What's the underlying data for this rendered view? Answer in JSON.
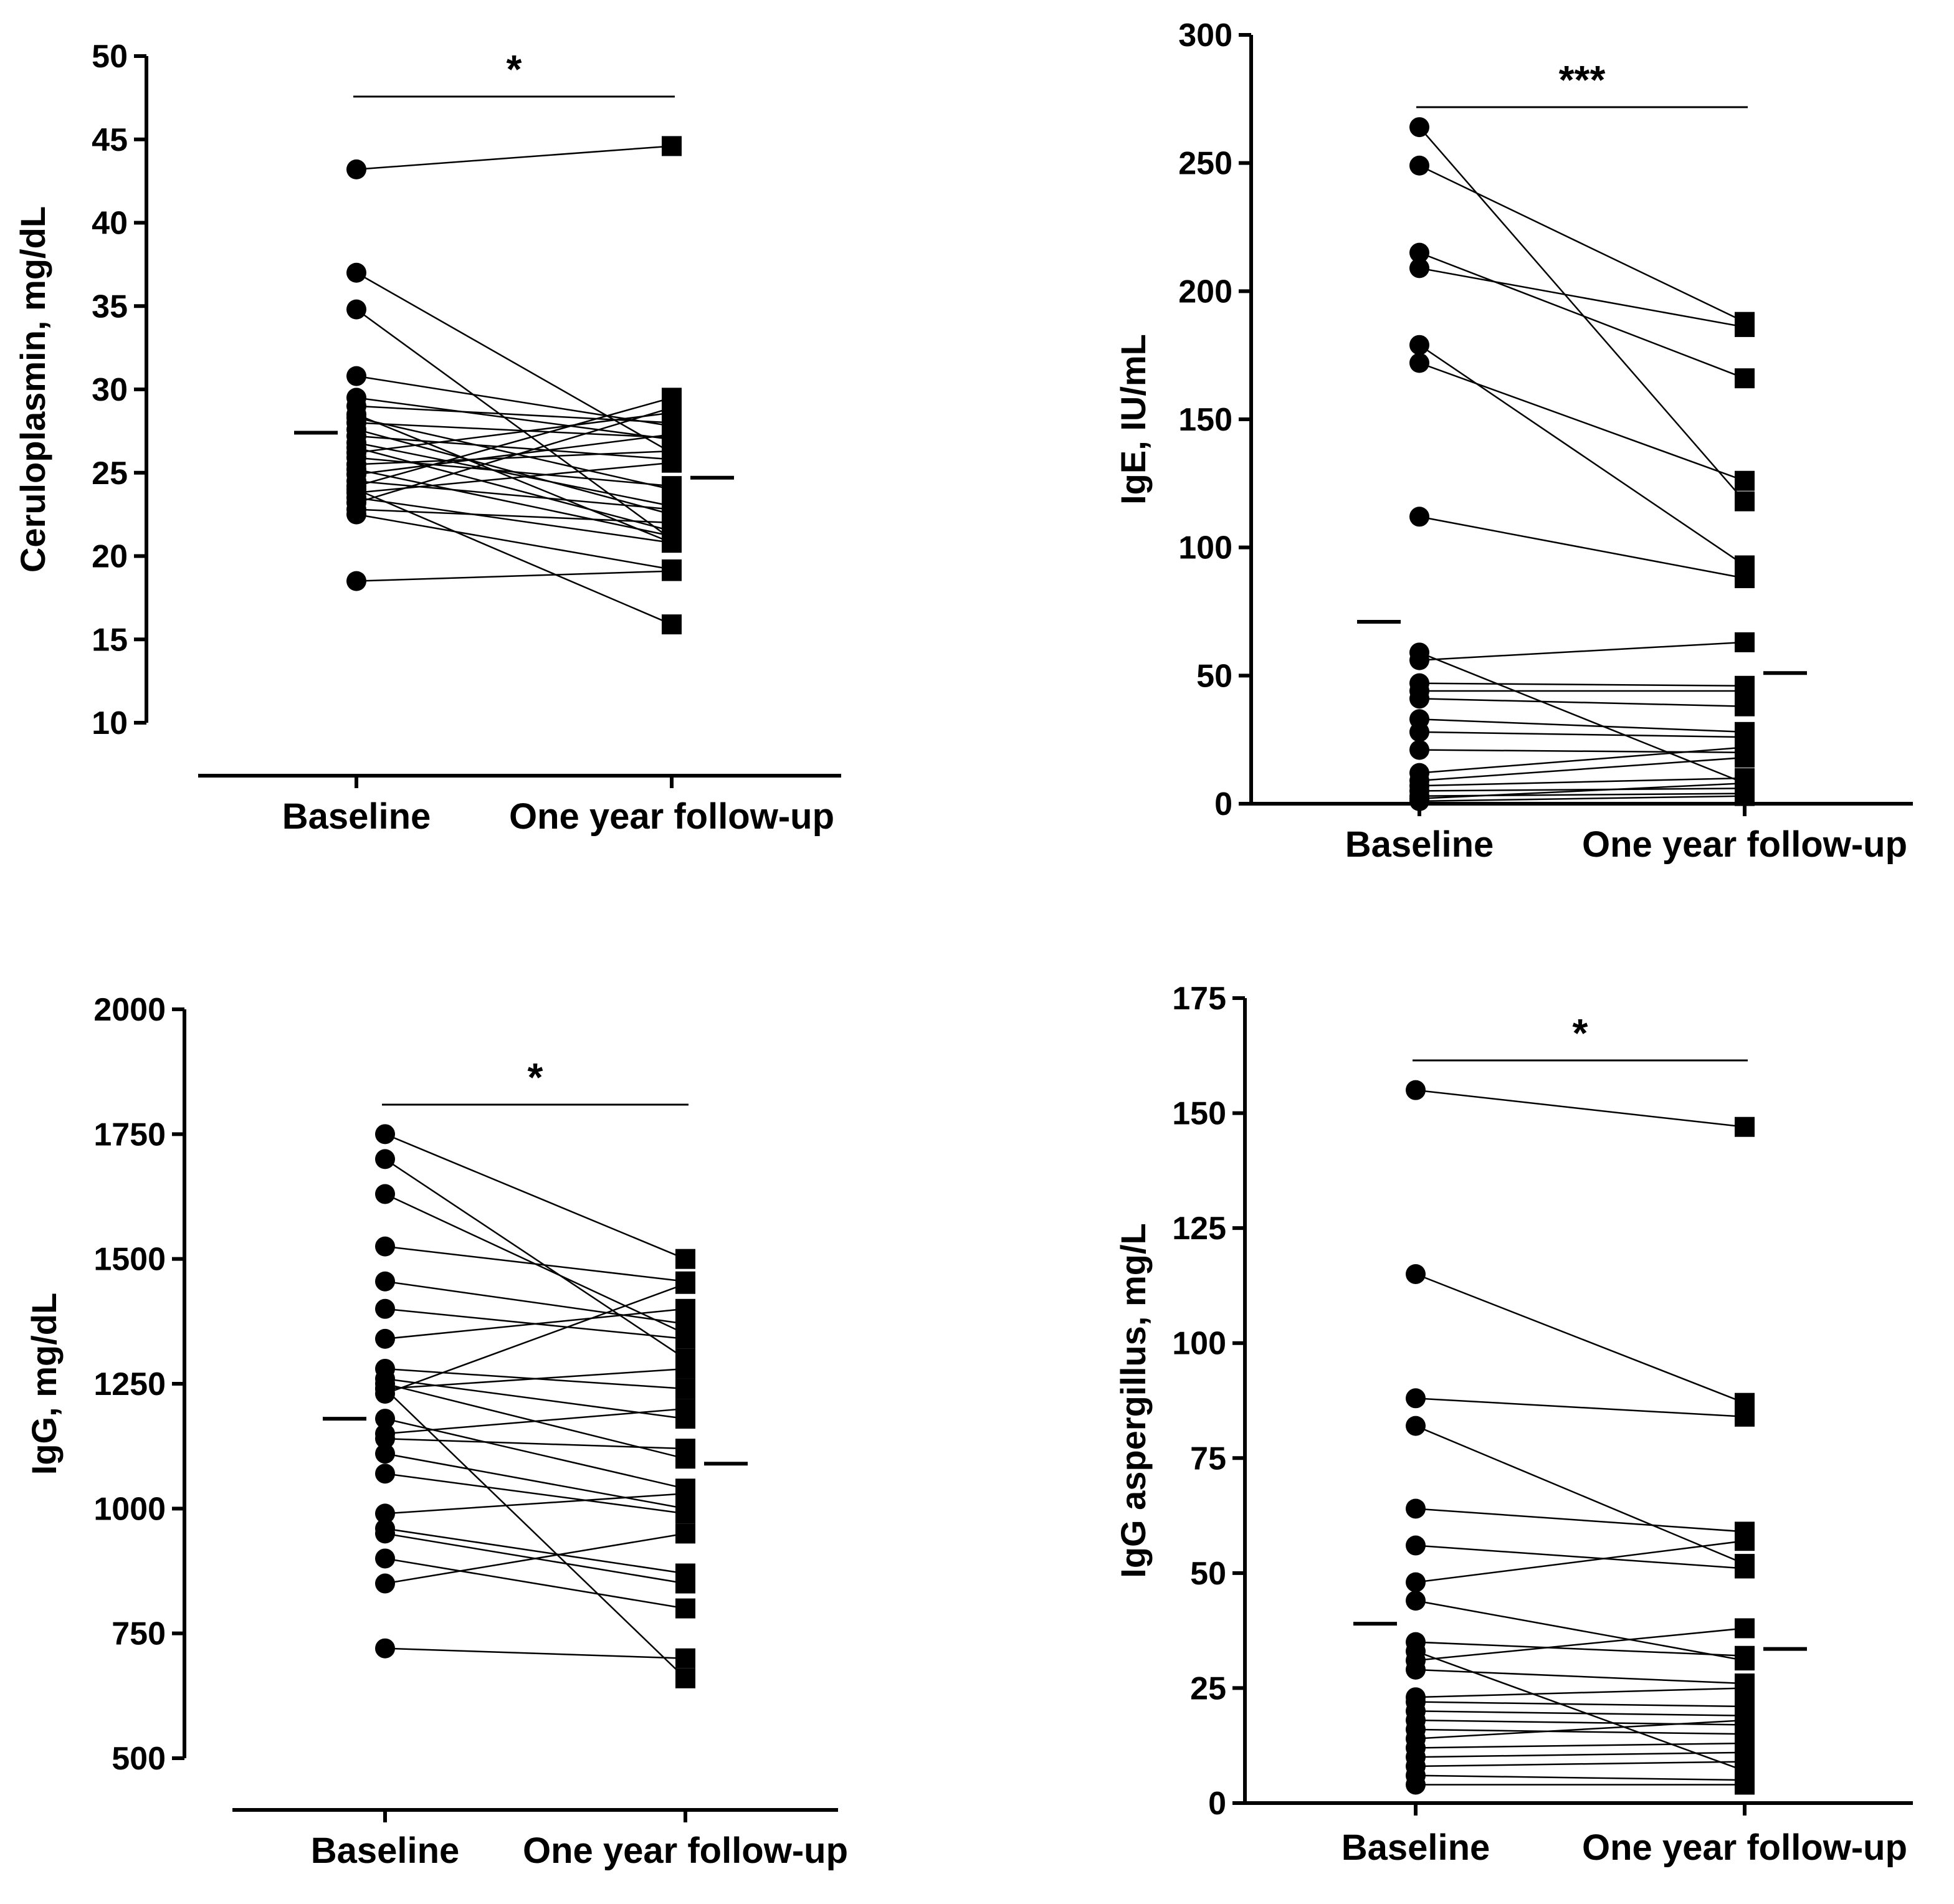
{
  "chart_data": [
    {
      "type": "paired-scatter",
      "ylabel": "Ceruloplasmin, mg/dL",
      "categories": [
        "Baseline",
        "One year follow-up"
      ],
      "ylim": [
        10,
        50
      ],
      "yticks": [
        10,
        15,
        20,
        25,
        30,
        35,
        40,
        45,
        50
      ],
      "significance": "*",
      "mean_baseline": 27.4,
      "mean_followup": 24.7,
      "pairs": [
        [
          43.2,
          44.6
        ],
        [
          37,
          26.2
        ],
        [
          34.8,
          21
        ],
        [
          30.8,
          27.8
        ],
        [
          29.5,
          27
        ],
        [
          29,
          28
        ],
        [
          28.5,
          20.8
        ],
        [
          28.3,
          24
        ],
        [
          28,
          27.1
        ],
        [
          27.6,
          22.5
        ],
        [
          27.2,
          25.8
        ],
        [
          26.8,
          23
        ],
        [
          26.5,
          21.5
        ],
        [
          26.2,
          28.6
        ],
        [
          25.9,
          24.2
        ],
        [
          25.5,
          26.3
        ],
        [
          25.2,
          21.2
        ],
        [
          24.9,
          27.3
        ],
        [
          24.5,
          22.8
        ],
        [
          24.2,
          29.5
        ],
        [
          23.8,
          25.6
        ],
        [
          23.5,
          20.8
        ],
        [
          23.2,
          28.9
        ],
        [
          22.8,
          22
        ],
        [
          22.5,
          19.2
        ],
        [
          24,
          15.9
        ],
        [
          18.5,
          19.1
        ]
      ]
    },
    {
      "type": "paired-scatter",
      "ylabel": "IgE, IU/mL",
      "categories": [
        "Baseline",
        "One year follow-up"
      ],
      "ylim": [
        0,
        300
      ],
      "yticks": [
        0,
        50,
        100,
        150,
        200,
        250,
        300
      ],
      "significance": "***",
      "mean_baseline": 71,
      "mean_followup": 51,
      "pairs": [
        [
          264,
          118
        ],
        [
          249,
          188
        ],
        [
          215,
          166
        ],
        [
          209,
          186
        ],
        [
          179,
          93
        ],
        [
          172,
          126
        ],
        [
          112,
          88
        ],
        [
          59,
          8
        ],
        [
          56,
          63
        ],
        [
          47,
          46
        ],
        [
          44,
          44
        ],
        [
          41,
          38
        ],
        [
          33,
          28
        ],
        [
          28,
          26
        ],
        [
          21,
          20
        ],
        [
          12,
          22
        ],
        [
          9,
          18
        ],
        [
          7,
          10
        ],
        [
          5,
          6
        ],
        [
          3,
          4
        ],
        [
          2,
          8
        ],
        [
          1,
          3
        ]
      ]
    },
    {
      "type": "paired-scatter",
      "ylabel": "IgG, mg/dL",
      "categories": [
        "Baseline",
        "One year follow-up"
      ],
      "ylim": [
        500,
        2000
      ],
      "yticks": [
        500,
        750,
        1000,
        1250,
        1500,
        1750,
        2000
      ],
      "significance": "*",
      "mean_baseline": 1180,
      "mean_followup": 1090,
      "pairs": [
        [
          1750,
          1500
        ],
        [
          1700,
          1300
        ],
        [
          1630,
          1350
        ],
        [
          1525,
          1455
        ],
        [
          1455,
          1370
        ],
        [
          1400,
          1340
        ],
        [
          1340,
          1400
        ],
        [
          1280,
          1240
        ],
        [
          1260,
          1180
        ],
        [
          1250,
          1100
        ],
        [
          1240,
          1280
        ],
        [
          1230,
          1450
        ],
        [
          1180,
          1040
        ],
        [
          1150,
          1200
        ],
        [
          1140,
          1120
        ],
        [
          1110,
          1000
        ],
        [
          1070,
          990
        ],
        [
          990,
          1030
        ],
        [
          960,
          870
        ],
        [
          950,
          850
        ],
        [
          900,
          800
        ],
        [
          850,
          950
        ],
        [
          1240,
          660
        ],
        [
          720,
          700
        ]
      ]
    },
    {
      "type": "paired-scatter",
      "ylabel": "IgG aspergillus, mg/L",
      "categories": [
        "Baseline",
        "One year follow-up"
      ],
      "ylim": [
        0,
        175
      ],
      "yticks": [
        0,
        25,
        50,
        75,
        100,
        125,
        150,
        175
      ],
      "significance": "*",
      "mean_baseline": 39,
      "mean_followup": 33.5,
      "pairs": [
        [
          155,
          147
        ],
        [
          115,
          87
        ],
        [
          88,
          84
        ],
        [
          82,
          52
        ],
        [
          64,
          59
        ],
        [
          56,
          51
        ],
        [
          48,
          57
        ],
        [
          44,
          31
        ],
        [
          35,
          32
        ],
        [
          33,
          7
        ],
        [
          31,
          38
        ],
        [
          29,
          26
        ],
        [
          23,
          25
        ],
        [
          22,
          21
        ],
        [
          20,
          19
        ],
        [
          18,
          17
        ],
        [
          16,
          15
        ],
        [
          14,
          18
        ],
        [
          12,
          13
        ],
        [
          10,
          11
        ],
        [
          8,
          9
        ],
        [
          6,
          5
        ],
        [
          4,
          4
        ]
      ]
    }
  ]
}
